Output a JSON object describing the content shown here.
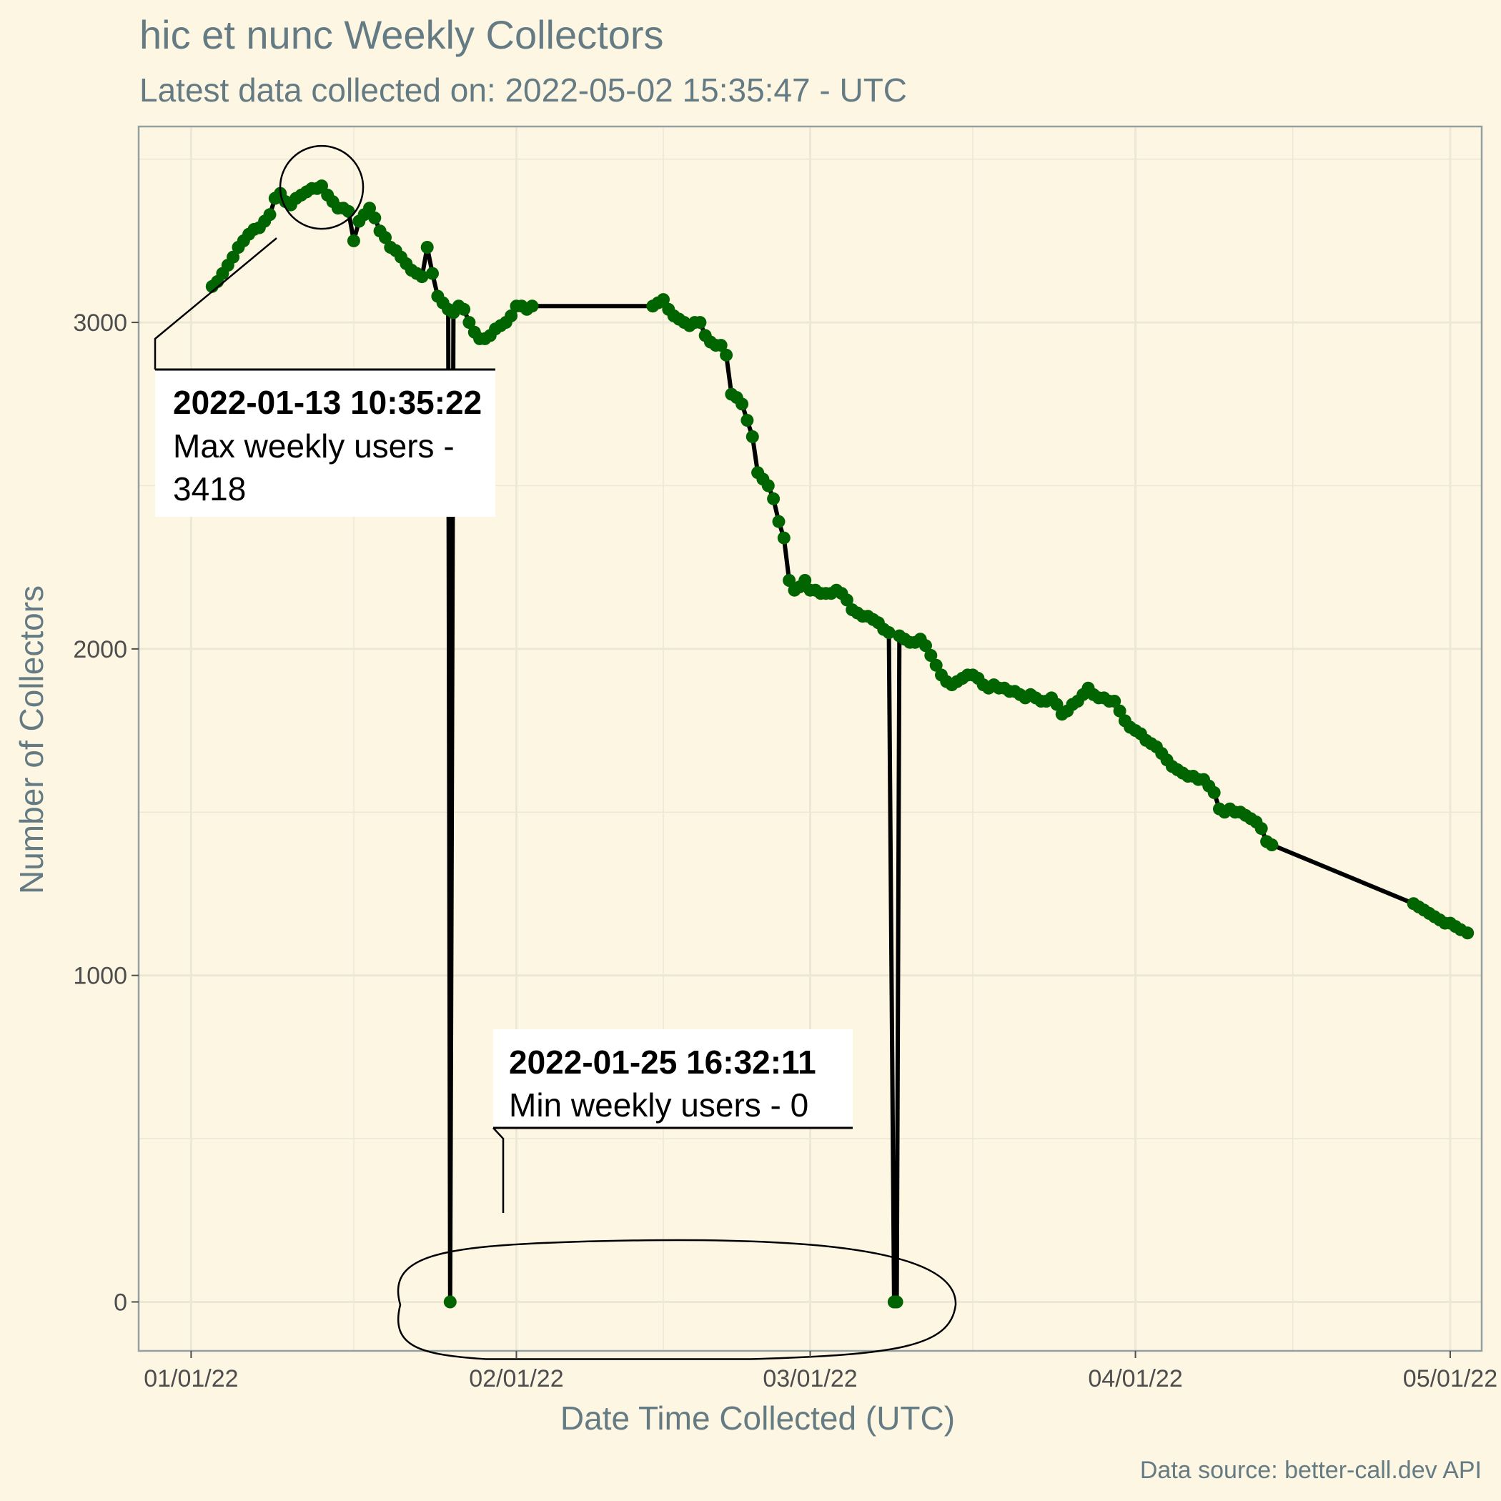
{
  "chart_data": {
    "type": "line",
    "title": "hic et nunc Weekly Collectors",
    "subtitle": "Latest data collected on: 2022-05-02 15:35:47  - UTC",
    "xlabel": "Date Time Collected (UTC)",
    "ylabel": "Number of Collectors",
    "caption": "Data source: better-call.dev API",
    "xlim": [
      "2021-12-27",
      "2022-05-04"
    ],
    "ylim": [
      -150,
      3600
    ],
    "x_ticks": [
      {
        "date": "2022-01-01",
        "label": "01/01/22"
      },
      {
        "date": "2022-02-01",
        "label": "02/01/22"
      },
      {
        "date": "2022-03-01",
        "label": "03/01/22"
      },
      {
        "date": "2022-04-01",
        "label": "04/01/22"
      },
      {
        "date": "2022-05-01",
        "label": "05/01/22"
      }
    ],
    "y_ticks": [
      0,
      1000,
      2000,
      3000
    ],
    "grid": true,
    "line_color": "#000000",
    "point_color": "#006400",
    "series": [
      {
        "points": [
          [
            "2022-01-03T00:00",
            3110
          ],
          [
            "2022-01-03T12:00",
            3125
          ],
          [
            "2022-01-04T00:00",
            3150
          ],
          [
            "2022-01-04T12:00",
            3175
          ],
          [
            "2022-01-05T00:00",
            3200
          ],
          [
            "2022-01-05T12:00",
            3230
          ],
          [
            "2022-01-06T00:00",
            3250
          ],
          [
            "2022-01-06T12:00",
            3270
          ],
          [
            "2022-01-07T00:00",
            3285
          ],
          [
            "2022-01-07T12:00",
            3290
          ],
          [
            "2022-01-08T00:00",
            3310
          ],
          [
            "2022-01-08T12:00",
            3330
          ],
          [
            "2022-01-09T00:00",
            3380
          ],
          [
            "2022-01-09T12:00",
            3395
          ],
          [
            "2022-01-10T00:00",
            3370
          ],
          [
            "2022-01-10T12:00",
            3360
          ],
          [
            "2022-01-11T00:00",
            3380
          ],
          [
            "2022-01-11T12:00",
            3390
          ],
          [
            "2022-01-12T00:00",
            3400
          ],
          [
            "2022-01-12T12:00",
            3410
          ],
          [
            "2022-01-13T00:00",
            3410
          ],
          [
            "2022-01-13T10:35",
            3418
          ],
          [
            "2022-01-14T00:00",
            3390
          ],
          [
            "2022-01-14T12:00",
            3370
          ],
          [
            "2022-01-15T00:00",
            3350
          ],
          [
            "2022-01-15T12:00",
            3350
          ],
          [
            "2022-01-16T00:00",
            3340
          ],
          [
            "2022-01-16T12:00",
            3250
          ],
          [
            "2022-01-17T00:00",
            3310
          ],
          [
            "2022-01-17T12:00",
            3330
          ],
          [
            "2022-01-18T00:00",
            3350
          ],
          [
            "2022-01-18T12:00",
            3320
          ],
          [
            "2022-01-19T00:00",
            3280
          ],
          [
            "2022-01-19T12:00",
            3260
          ],
          [
            "2022-01-20T00:00",
            3230
          ],
          [
            "2022-01-20T12:00",
            3220
          ],
          [
            "2022-01-21T00:00",
            3200
          ],
          [
            "2022-01-21T12:00",
            3180
          ],
          [
            "2022-01-22T00:00",
            3160
          ],
          [
            "2022-01-22T12:00",
            3150
          ],
          [
            "2022-01-23T00:00",
            3140
          ],
          [
            "2022-01-23T12:00",
            3230
          ],
          [
            "2022-01-24T00:00",
            3150
          ],
          [
            "2022-01-24T12:00",
            3080
          ],
          [
            "2022-01-25T00:00",
            3060
          ],
          [
            "2022-01-25T12:00",
            3040
          ],
          [
            "2022-01-25T16:32",
            0
          ],
          [
            "2022-01-26T00:00",
            3030
          ],
          [
            "2022-01-26T12:00",
            3050
          ],
          [
            "2022-01-27T00:00",
            3040
          ],
          [
            "2022-01-27T12:00",
            3000
          ],
          [
            "2022-01-28T00:00",
            2970
          ],
          [
            "2022-01-28T12:00",
            2950
          ],
          [
            "2022-01-29T00:00",
            2950
          ],
          [
            "2022-01-29T12:00",
            2960
          ],
          [
            "2022-01-30T00:00",
            2980
          ],
          [
            "2022-01-30T12:00",
            2990
          ],
          [
            "2022-01-31T00:00",
            3000
          ],
          [
            "2022-01-31T12:00",
            3020
          ],
          [
            "2022-02-01T00:00",
            3050
          ],
          [
            "2022-02-01T12:00",
            3050
          ],
          [
            "2022-02-02T00:00",
            3040
          ],
          [
            "2022-02-02T12:00",
            3050
          ],
          [
            "2022-02-14T00:00",
            3050
          ],
          [
            "2022-02-14T12:00",
            3060
          ],
          [
            "2022-02-15T00:00",
            3070
          ],
          [
            "2022-02-15T12:00",
            3040
          ],
          [
            "2022-02-16T00:00",
            3020
          ],
          [
            "2022-02-16T12:00",
            3010
          ],
          [
            "2022-02-17T00:00",
            3000
          ],
          [
            "2022-02-17T12:00",
            2990
          ],
          [
            "2022-02-18T00:00",
            3000
          ],
          [
            "2022-02-18T12:00",
            3000
          ],
          [
            "2022-02-19T00:00",
            2960
          ],
          [
            "2022-02-19T12:00",
            2940
          ],
          [
            "2022-02-20T00:00",
            2930
          ],
          [
            "2022-02-20T12:00",
            2930
          ],
          [
            "2022-02-21T00:00",
            2900
          ],
          [
            "2022-02-21T12:00",
            2780
          ],
          [
            "2022-02-22T00:00",
            2770
          ],
          [
            "2022-02-22T12:00",
            2750
          ],
          [
            "2022-02-23T00:00",
            2700
          ],
          [
            "2022-02-23T12:00",
            2650
          ],
          [
            "2022-02-24T00:00",
            2540
          ],
          [
            "2022-02-24T12:00",
            2520
          ],
          [
            "2022-02-25T00:00",
            2500
          ],
          [
            "2022-02-25T12:00",
            2460
          ],
          [
            "2022-02-26T00:00",
            2390
          ],
          [
            "2022-02-26T12:00",
            2340
          ],
          [
            "2022-02-27T00:00",
            2210
          ],
          [
            "2022-02-27T12:00",
            2180
          ],
          [
            "2022-02-28T00:00",
            2190
          ],
          [
            "2022-02-28T12:00",
            2210
          ],
          [
            "2022-03-01T00:00",
            2180
          ],
          [
            "2022-03-01T12:00",
            2180
          ],
          [
            "2022-03-02T00:00",
            2170
          ],
          [
            "2022-03-02T12:00",
            2170
          ],
          [
            "2022-03-03T00:00",
            2170
          ],
          [
            "2022-03-03T12:00",
            2180
          ],
          [
            "2022-03-04T00:00",
            2170
          ],
          [
            "2022-03-04T12:00",
            2150
          ],
          [
            "2022-03-05T00:00",
            2120
          ],
          [
            "2022-03-05T12:00",
            2110
          ],
          [
            "2022-03-06T00:00",
            2100
          ],
          [
            "2022-03-06T12:00",
            2100
          ],
          [
            "2022-03-07T00:00",
            2090
          ],
          [
            "2022-03-07T12:00",
            2080
          ],
          [
            "2022-03-08T00:00",
            2060
          ],
          [
            "2022-03-08T12:00",
            2050
          ],
          [
            "2022-03-09T00:00",
            0
          ],
          [
            "2022-03-09T06:00",
            0
          ],
          [
            "2022-03-09T12:00",
            2040
          ],
          [
            "2022-03-10T00:00",
            2030
          ],
          [
            "2022-03-10T12:00",
            2020
          ],
          [
            "2022-03-11T00:00",
            2020
          ],
          [
            "2022-03-11T12:00",
            2030
          ],
          [
            "2022-03-12T00:00",
            2010
          ],
          [
            "2022-03-12T12:00",
            1980
          ],
          [
            "2022-03-13T00:00",
            1950
          ],
          [
            "2022-03-13T12:00",
            1920
          ],
          [
            "2022-03-14T00:00",
            1900
          ],
          [
            "2022-03-14T12:00",
            1890
          ],
          [
            "2022-03-15T00:00",
            1900
          ],
          [
            "2022-03-15T12:00",
            1910
          ],
          [
            "2022-03-16T00:00",
            1920
          ],
          [
            "2022-03-16T12:00",
            1920
          ],
          [
            "2022-03-17T00:00",
            1910
          ],
          [
            "2022-03-17T12:00",
            1890
          ],
          [
            "2022-03-18T00:00",
            1880
          ],
          [
            "2022-03-18T12:00",
            1890
          ],
          [
            "2022-03-19T00:00",
            1880
          ],
          [
            "2022-03-19T12:00",
            1880
          ],
          [
            "2022-03-20T00:00",
            1870
          ],
          [
            "2022-03-20T12:00",
            1870
          ],
          [
            "2022-03-21T00:00",
            1860
          ],
          [
            "2022-03-21T12:00",
            1850
          ],
          [
            "2022-03-22T00:00",
            1860
          ],
          [
            "2022-03-22T12:00",
            1850
          ],
          [
            "2022-03-23T00:00",
            1840
          ],
          [
            "2022-03-23T12:00",
            1840
          ],
          [
            "2022-03-24T00:00",
            1850
          ],
          [
            "2022-03-24T12:00",
            1830
          ],
          [
            "2022-03-25T00:00",
            1800
          ],
          [
            "2022-03-25T12:00",
            1810
          ],
          [
            "2022-03-26T00:00",
            1830
          ],
          [
            "2022-03-26T12:00",
            1840
          ],
          [
            "2022-03-27T00:00",
            1860
          ],
          [
            "2022-03-27T12:00",
            1880
          ],
          [
            "2022-03-28T00:00",
            1860
          ],
          [
            "2022-03-28T12:00",
            1850
          ],
          [
            "2022-03-29T00:00",
            1850
          ],
          [
            "2022-03-29T12:00",
            1840
          ],
          [
            "2022-03-30T00:00",
            1840
          ],
          [
            "2022-03-30T12:00",
            1810
          ],
          [
            "2022-03-31T00:00",
            1780
          ],
          [
            "2022-03-31T12:00",
            1760
          ],
          [
            "2022-04-01T00:00",
            1750
          ],
          [
            "2022-04-01T12:00",
            1740
          ],
          [
            "2022-04-02T00:00",
            1720
          ],
          [
            "2022-04-02T12:00",
            1710
          ],
          [
            "2022-04-03T00:00",
            1700
          ],
          [
            "2022-04-03T12:00",
            1680
          ],
          [
            "2022-04-04T00:00",
            1660
          ],
          [
            "2022-04-04T12:00",
            1640
          ],
          [
            "2022-04-05T00:00",
            1630
          ],
          [
            "2022-04-05T12:00",
            1620
          ],
          [
            "2022-04-06T00:00",
            1610
          ],
          [
            "2022-04-06T12:00",
            1610
          ],
          [
            "2022-04-07T00:00",
            1600
          ],
          [
            "2022-04-07T12:00",
            1600
          ],
          [
            "2022-04-08T00:00",
            1580
          ],
          [
            "2022-04-08T12:00",
            1560
          ],
          [
            "2022-04-09T00:00",
            1510
          ],
          [
            "2022-04-09T12:00",
            1500
          ],
          [
            "2022-04-10T00:00",
            1510
          ],
          [
            "2022-04-10T12:00",
            1500
          ],
          [
            "2022-04-11T00:00",
            1500
          ],
          [
            "2022-04-11T12:00",
            1490
          ],
          [
            "2022-04-12T00:00",
            1480
          ],
          [
            "2022-04-12T12:00",
            1470
          ],
          [
            "2022-04-13T00:00",
            1450
          ],
          [
            "2022-04-13T12:00",
            1410
          ],
          [
            "2022-04-14T00:00",
            1400
          ],
          [
            "2022-04-27T12:00",
            1220
          ],
          [
            "2022-04-28T00:00",
            1210
          ],
          [
            "2022-04-28T12:00",
            1200
          ],
          [
            "2022-04-29T00:00",
            1190
          ],
          [
            "2022-04-29T12:00",
            1180
          ],
          [
            "2022-04-30T00:00",
            1170
          ],
          [
            "2022-04-30T12:00",
            1160
          ],
          [
            "2022-05-01T00:00",
            1160
          ],
          [
            "2022-05-01T12:00",
            1150
          ],
          [
            "2022-05-02T00:00",
            1140
          ],
          [
            "2022-05-02T15:35",
            1130
          ]
        ]
      }
    ],
    "annotations": [
      {
        "name": "max",
        "bold": "2022-01-13 10:35:22",
        "lines": [
          "Max weekly users -",
          "3418"
        ],
        "point": [
          "2022-01-13T10:35",
          3418
        ]
      },
      {
        "name": "min",
        "bold": "2022-01-25 16:32:11",
        "lines": [
          "Min weekly users - 0"
        ],
        "point": [
          "2022-01-25T16:32",
          0
        ]
      }
    ]
  }
}
